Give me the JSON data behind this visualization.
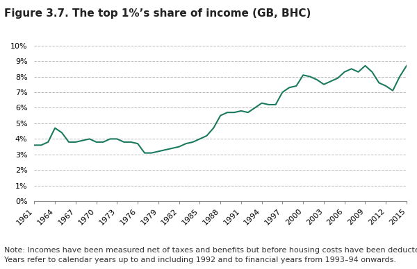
{
  "title": "Figure 3.7. The top 1%’s share of income (GB, BHC)",
  "years": [
    1961,
    1962,
    1963,
    1964,
    1965,
    1966,
    1967,
    1968,
    1969,
    1970,
    1971,
    1972,
    1973,
    1974,
    1975,
    1976,
    1977,
    1978,
    1979,
    1980,
    1981,
    1982,
    1983,
    1984,
    1985,
    1986,
    1987,
    1988,
    1989,
    1990,
    1991,
    1992,
    1993,
    1994,
    1995,
    1996,
    1997,
    1998,
    1999,
    2000,
    2001,
    2002,
    2003,
    2004,
    2005,
    2006,
    2007,
    2008,
    2009,
    2010,
    2011,
    2012,
    2013,
    2014,
    2015
  ],
  "values": [
    0.036,
    0.036,
    0.038,
    0.047,
    0.044,
    0.038,
    0.038,
    0.039,
    0.04,
    0.038,
    0.038,
    0.04,
    0.04,
    0.038,
    0.038,
    0.037,
    0.031,
    0.031,
    0.032,
    0.033,
    0.034,
    0.035,
    0.037,
    0.038,
    0.04,
    0.042,
    0.047,
    0.055,
    0.057,
    0.057,
    0.058,
    0.057,
    0.06,
    0.063,
    0.062,
    0.062,
    0.07,
    0.073,
    0.074,
    0.081,
    0.08,
    0.078,
    0.075,
    0.077,
    0.079,
    0.083,
    0.085,
    0.083,
    0.087,
    0.083,
    0.076,
    0.074,
    0.071,
    0.08,
    0.087
  ],
  "line_color": "#1a7a5e",
  "line_width": 1.5,
  "background_color": "#ffffff",
  "grid_color": "#bbbbbb",
  "ylim": [
    0,
    0.1
  ],
  "yticks": [
    0,
    0.01,
    0.02,
    0.03,
    0.04,
    0.05,
    0.06,
    0.07,
    0.08,
    0.09,
    0.1
  ],
  "xticks": [
    1961,
    1964,
    1967,
    1970,
    1973,
    1976,
    1979,
    1982,
    1985,
    1988,
    1991,
    1994,
    1997,
    2000,
    2003,
    2006,
    2009,
    2012,
    2015
  ],
  "note": "Note: Incomes have been measured net of taxes and benefits but before housing costs have been deducted.\nYears refer to calendar years up to and including 1992 and to financial years from 1993–94 onwards.",
  "title_fontsize": 11,
  "tick_fontsize": 8,
  "note_fontsize": 8
}
